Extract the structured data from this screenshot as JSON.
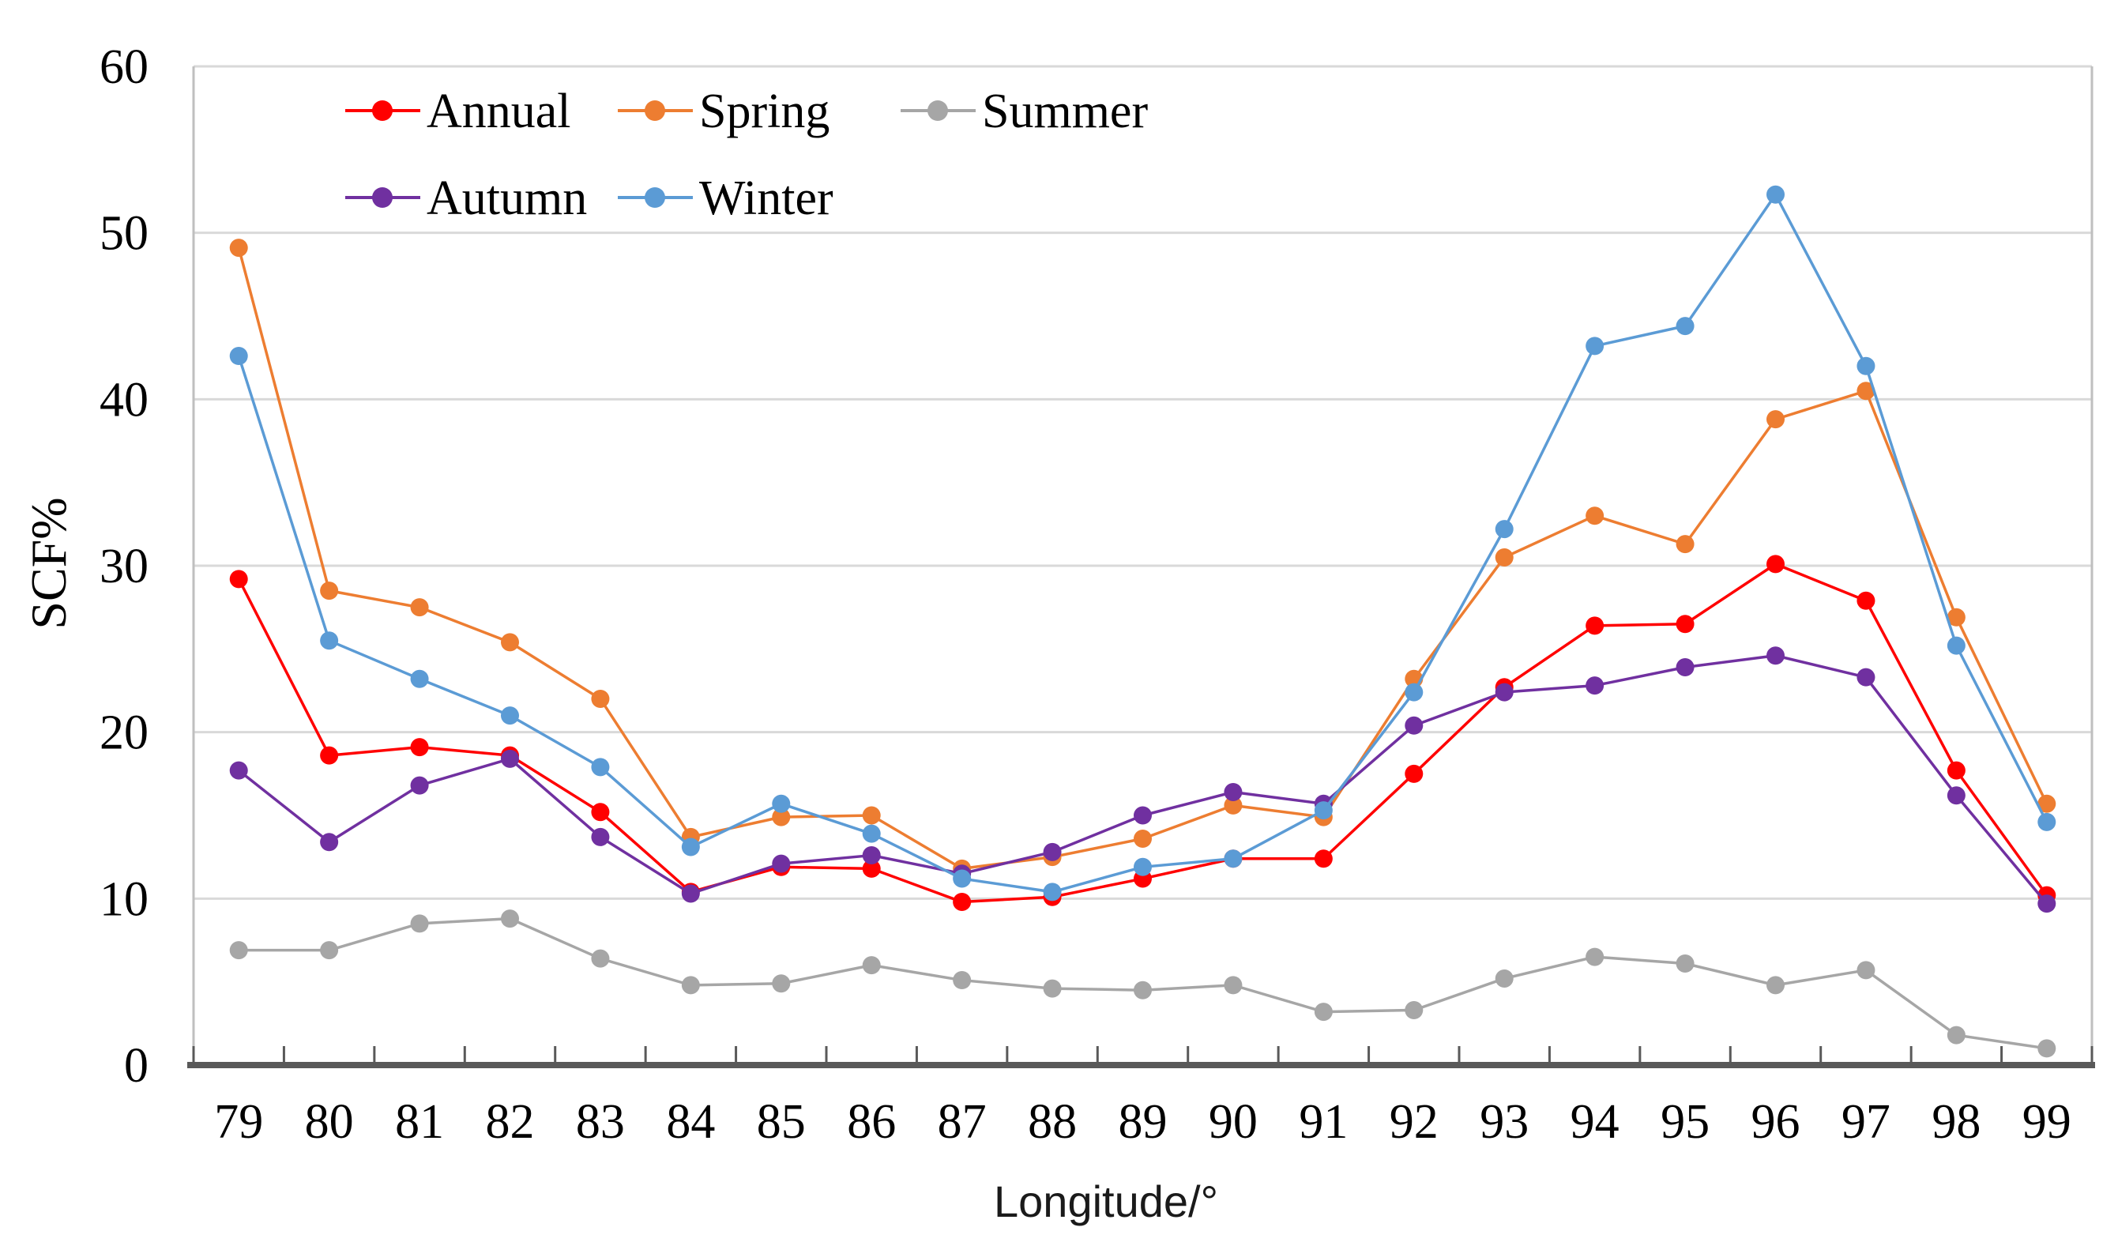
{
  "chart_data": {
    "type": "line",
    "title": "",
    "xlabel": "Longitude/°",
    "ylabel": "SCF%",
    "x": [
      79,
      80,
      81,
      82,
      83,
      84,
      85,
      86,
      87,
      88,
      89,
      90,
      91,
      92,
      93,
      94,
      95,
      96,
      97,
      98,
      99
    ],
    "ylim": [
      0,
      60
    ],
    "yticks": [
      0,
      10,
      20,
      30,
      40,
      50,
      60
    ],
    "grid": true,
    "legend_position": "top-left-inside",
    "legend_rows": [
      [
        "Annual",
        "Spring",
        "Summer"
      ],
      [
        "Autumn",
        "Winter"
      ]
    ],
    "series": [
      {
        "name": "Annual",
        "color": "#FF0000",
        "values": [
          29.2,
          18.6,
          19.1,
          18.6,
          15.2,
          10.4,
          11.9,
          11.8,
          9.8,
          10.1,
          11.2,
          12.4,
          12.4,
          17.5,
          22.7,
          26.4,
          26.5,
          30.1,
          27.9,
          17.7,
          10.2
        ]
      },
      {
        "name": "Spring",
        "color": "#ED7D31",
        "values": [
          49.1,
          28.5,
          27.5,
          25.4,
          22.0,
          13.7,
          14.9,
          15.0,
          11.8,
          12.5,
          13.6,
          15.6,
          14.9,
          23.2,
          30.5,
          33.0,
          31.3,
          38.8,
          40.5,
          26.9,
          15.7
        ]
      },
      {
        "name": "Summer",
        "color": "#A6A6A6",
        "values": [
          6.9,
          6.9,
          8.5,
          8.8,
          6.4,
          4.8,
          4.9,
          6.0,
          5.1,
          4.6,
          4.5,
          4.8,
          3.2,
          3.3,
          5.2,
          6.5,
          6.1,
          4.8,
          5.7,
          1.8,
          1.0
        ]
      },
      {
        "name": "Autumn",
        "color": "#7030A0",
        "values": [
          17.7,
          13.4,
          16.8,
          18.4,
          13.7,
          10.3,
          12.1,
          12.6,
          11.5,
          12.8,
          15.0,
          16.4,
          15.7,
          20.4,
          22.4,
          22.8,
          23.9,
          24.6,
          23.3,
          16.2,
          9.7
        ]
      },
      {
        "name": "Winter",
        "color": "#5B9BD5",
        "values": [
          42.6,
          25.5,
          23.2,
          21.0,
          17.9,
          13.1,
          15.7,
          13.9,
          11.2,
          10.4,
          11.9,
          12.4,
          15.3,
          22.4,
          32.2,
          43.2,
          44.4,
          52.3,
          42.0,
          25.2,
          14.6
        ]
      }
    ],
    "colors": {
      "grid": "#D9D9D9",
      "plot_border": "#BFBFBF",
      "axis_line": "#595959",
      "tick": "#595959",
      "text": "#000000",
      "background": "#FFFFFF"
    }
  }
}
